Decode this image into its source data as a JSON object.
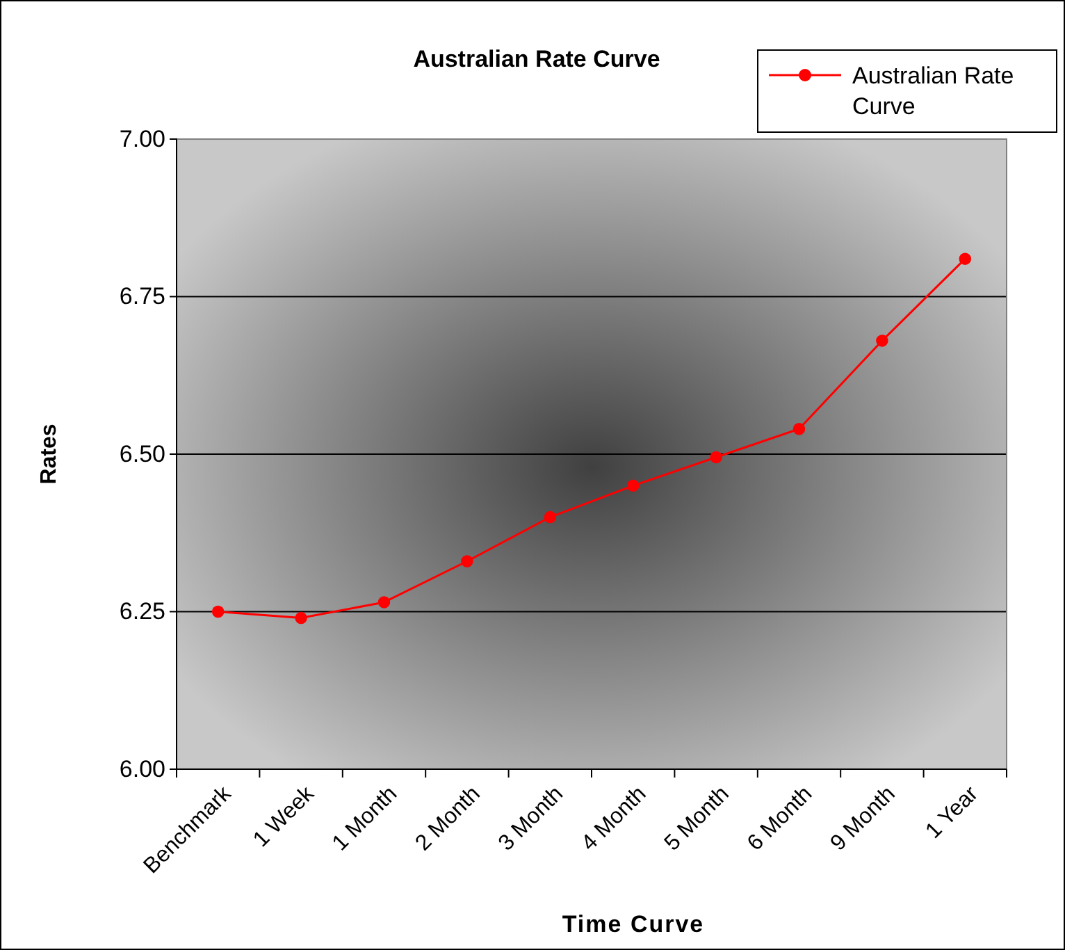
{
  "chart_data": {
    "type": "line",
    "title": "Australian Rate Curve",
    "xlabel": "Time Curve",
    "ylabel": "Rates",
    "categories": [
      "Benchmark",
      "1 Week",
      "1 Month",
      "2 Month",
      "3 Month",
      "4 Month",
      "5 Month",
      "6 Month",
      "9 Month",
      "1 Year"
    ],
    "series": [
      {
        "name": "Australian Rate Curve",
        "color": "#ff0000",
        "values": [
          6.25,
          6.24,
          6.265,
          6.33,
          6.4,
          6.45,
          6.495,
          6.54,
          6.68,
          6.81
        ]
      }
    ],
    "ylim": [
      6.0,
      7.0
    ],
    "yticks": [
      {
        "value": 6.0,
        "label": "6.00"
      },
      {
        "value": 6.25,
        "label": "6.25"
      },
      {
        "value": 6.5,
        "label": "6.50"
      },
      {
        "value": 6.75,
        "label": "6.75"
      },
      {
        "value": 7.0,
        "label": "7.00"
      }
    ],
    "grid": "y",
    "legend": "top right",
    "marker": "circle",
    "line_style": "solid"
  }
}
